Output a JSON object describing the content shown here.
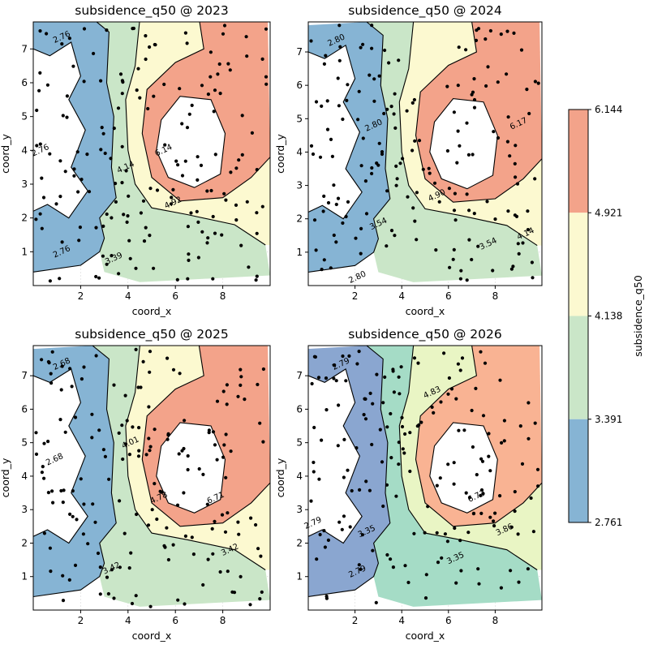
{
  "colors": {
    "band1": "#86b4d4",
    "band2": "#cae6c8",
    "band3": "#fcf9d0",
    "band4": "#f3a38a",
    "band1_2026": "#8aa6d0",
    "band2_2026": "#a5dcc6",
    "band3_2026": "#e9f5c4",
    "band4_2026": "#f9b393",
    "contour": "#000000",
    "points": "#000000",
    "grid": "#d9d9d9"
  },
  "colorbar": {
    "label": "subsidence_q50",
    "ticks": [
      "6.144",
      "4.921",
      "4.138",
      "3.391",
      "2.761"
    ],
    "tick_values": [
      6.144,
      4.921,
      4.138,
      3.391,
      2.761
    ]
  },
  "chart_data": [
    {
      "type": "contour",
      "title": "subsidence_q50 @ 2023",
      "xlabel": "coord_x",
      "ylabel": "coord_y",
      "xlim": [
        0,
        10
      ],
      "ylim": [
        0,
        7.8
      ],
      "xticks": [
        "2",
        "4",
        "6",
        "8"
      ],
      "yticks": [
        "1",
        "2",
        "3",
        "4",
        "5",
        "6",
        "7"
      ],
      "levels": [
        2.761,
        3.391,
        4.138,
        4.921,
        6.144
      ],
      "contour_labels": [
        {
          "text": "2.76",
          "x": 1.2,
          "y": 7.35
        },
        {
          "text": "2.76",
          "x": 0.3,
          "y": 4.0
        },
        {
          "text": "2.76",
          "x": 1.2,
          "y": 1.0
        },
        {
          "text": "4.14",
          "x": 3.9,
          "y": 3.5
        },
        {
          "text": "3.39",
          "x": 3.4,
          "y": 0.8
        },
        {
          "text": "6.14",
          "x": 5.5,
          "y": 4.0
        },
        {
          "text": "4.92",
          "x": 5.9,
          "y": 2.45
        }
      ]
    },
    {
      "type": "contour",
      "title": "subsidence_q50 @ 2024",
      "xlabel": "coord_x",
      "ylabel": "coord_y",
      "xlim": [
        0,
        10
      ],
      "ylim": [
        0,
        7.9
      ],
      "xticks": [
        "2",
        "4",
        "6",
        "8"
      ],
      "yticks": [
        "1",
        "2",
        "3",
        "4",
        "5",
        "6",
        "7"
      ],
      "levels": [
        2.801,
        3.542,
        4.139,
        4.901,
        6.174
      ],
      "contour_labels": [
        {
          "text": "2.80",
          "x": 1.2,
          "y": 7.35
        },
        {
          "text": "2.80",
          "x": 2.8,
          "y": 4.8
        },
        {
          "text": "3.54",
          "x": 3.0,
          "y": 1.85
        },
        {
          "text": "4.90",
          "x": 5.5,
          "y": 2.7
        },
        {
          "text": "6.17",
          "x": 9.0,
          "y": 4.85
        },
        {
          "text": "3.54",
          "x": 7.7,
          "y": 1.25
        },
        {
          "text": "4.14",
          "x": 9.3,
          "y": 1.55
        },
        {
          "text": "2.80",
          "x": 2.1,
          "y": 0.25
        }
      ]
    },
    {
      "type": "contour",
      "title": "subsidence_q50 @ 2025",
      "xlabel": "coord_x",
      "ylabel": "coord_y",
      "xlim": [
        0,
        10
      ],
      "ylim": [
        0,
        7.9
      ],
      "xticks": [
        "2",
        "4",
        "6",
        "8"
      ],
      "yticks": [
        "1",
        "2",
        "3",
        "4",
        "5",
        "6",
        "7"
      ],
      "levels": [
        2.68,
        3.42,
        4.01,
        4.78,
        6.71
      ],
      "contour_labels": [
        {
          "text": "2.68",
          "x": 1.2,
          "y": 7.35
        },
        {
          "text": "2.68",
          "x": 0.9,
          "y": 4.5
        },
        {
          "text": "4.01",
          "x": 4.1,
          "y": 5.0
        },
        {
          "text": "4.78",
          "x": 5.3,
          "y": 3.35
        },
        {
          "text": "6.71",
          "x": 7.7,
          "y": 3.35
        },
        {
          "text": "3.42",
          "x": 8.3,
          "y": 1.8
        },
        {
          "text": "3.42",
          "x": 3.3,
          "y": 1.25
        }
      ]
    },
    {
      "type": "contour",
      "title": "subsidence_q50 @ 2026",
      "xlabel": "coord_x",
      "ylabel": "coord_y",
      "xlim": [
        0,
        10
      ],
      "ylim": [
        0,
        7.9
      ],
      "xticks": [
        "2",
        "4",
        "6",
        "8"
      ],
      "yticks": [
        "1",
        "2",
        "3",
        "4",
        "5",
        "6",
        "7"
      ],
      "levels": [
        2.79,
        3.35,
        3.86,
        4.83,
        6.73
      ],
      "contour_labels": [
        {
          "text": "2.79",
          "x": 1.4,
          "y": 7.35
        },
        {
          "text": "2.79",
          "x": 0.2,
          "y": 2.6
        },
        {
          "text": "3.35",
          "x": 2.5,
          "y": 2.35
        },
        {
          "text": "2.79",
          "x": 2.1,
          "y": 1.15
        },
        {
          "text": "4.83",
          "x": 5.3,
          "y": 6.5
        },
        {
          "text": "6.73",
          "x": 7.2,
          "y": 3.4
        },
        {
          "text": "3.86",
          "x": 8.4,
          "y": 2.4
        },
        {
          "text": "3.35",
          "x": 6.3,
          "y": 1.55
        }
      ]
    }
  ]
}
